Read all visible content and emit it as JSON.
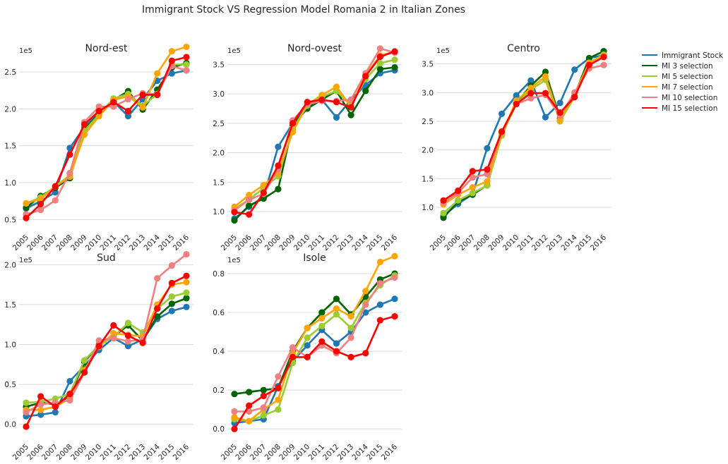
{
  "title": "Immigrant Stock VS Regression Model Romania 2 in Italian Zones",
  "legend": {
    "placement": "right",
    "entries": [
      {
        "name": "Immigrant Stock",
        "color": "#1f77b4"
      },
      {
        "name": "MI 3 selection",
        "color": "#006400"
      },
      {
        "name": "MI 5 selection",
        "color": "#9acd32"
      },
      {
        "name": "MI 7 selection",
        "color": "#ffa500"
      },
      {
        "name": "MI 10 selection",
        "color": "#f08080"
      },
      {
        "name": "MI 15 selection",
        "color": "#ff0000"
      }
    ]
  },
  "chart_data": [
    {
      "type": "line",
      "title": "Nord-est",
      "offset_label": "1e5",
      "grid": true,
      "x": [
        "2005",
        "2006",
        "2007",
        "2008",
        "2009",
        "2010",
        "2011",
        "2012",
        "2013",
        "2014",
        "2015",
        "2016"
      ],
      "ylim": [
        0.37,
        2.92
      ],
      "yticks": [
        0.5,
        1.0,
        1.5,
        2.0,
        2.5
      ],
      "ytick_labels": [
        "0.5",
        "1.0",
        "1.5",
        "2.0",
        "2.5"
      ],
      "series": [
        {
          "name": "Immigrant Stock",
          "values": [
            0.65,
            0.75,
            0.87,
            1.47,
            1.75,
            1.95,
            2.1,
            1.9,
            2.13,
            2.38,
            2.48,
            2.52
          ]
        },
        {
          "name": "MI 3 selection",
          "values": [
            0.66,
            0.82,
            0.93,
            1.06,
            1.72,
            1.93,
            2.12,
            2.24,
            1.99,
            2.26,
            2.56,
            2.62
          ]
        },
        {
          "name": "MI 5 selection",
          "values": [
            0.72,
            0.8,
            0.95,
            1.1,
            1.7,
            1.92,
            2.14,
            2.2,
            2.04,
            2.2,
            2.6,
            2.6
          ]
        },
        {
          "name": "MI 7 selection",
          "values": [
            0.72,
            0.78,
            0.95,
            1.08,
            1.65,
            1.9,
            2.12,
            2.17,
            2.02,
            2.48,
            2.78,
            2.84
          ]
        },
        {
          "name": "MI 10 selection",
          "values": [
            0.57,
            0.63,
            0.76,
            1.13,
            1.82,
            2.03,
            2.03,
            2.13,
            2.21,
            2.2,
            2.58,
            2.52
          ]
        },
        {
          "name": "MI 15 selection",
          "values": [
            0.52,
            0.71,
            0.95,
            1.38,
            1.79,
            1.97,
            2.09,
            1.97,
            2.19,
            2.19,
            2.65,
            2.7
          ]
        }
      ]
    },
    {
      "type": "line",
      "title": "Nord-ovest",
      "offset_label": "1e5",
      "grid": true,
      "x": [
        "2005",
        "2006",
        "2007",
        "2008",
        "2009",
        "2010",
        "2011",
        "2012",
        "2013",
        "2014",
        "2015",
        "2016"
      ],
      "ylim": [
        0.7,
        3.9
      ],
      "yticks": [
        1.0,
        1.5,
        2.0,
        2.5,
        3.0,
        3.5
      ],
      "ytick_labels": [
        "1.0",
        "1.5",
        "2.0",
        "2.5",
        "3.0",
        "3.5"
      ],
      "series": [
        {
          "name": "Immigrant Stock",
          "values": [
            0.88,
            1.08,
            1.25,
            2.1,
            2.5,
            2.78,
            2.9,
            2.6,
            2.9,
            3.15,
            3.35,
            3.4
          ]
        },
        {
          "name": "MI 3 selection",
          "values": [
            0.85,
            1.1,
            1.22,
            1.38,
            2.47,
            2.75,
            2.9,
            3.05,
            2.64,
            3.05,
            3.42,
            3.45
          ]
        },
        {
          "name": "MI 5 selection",
          "values": [
            1.05,
            1.2,
            1.4,
            1.6,
            2.4,
            2.8,
            2.95,
            3.05,
            2.8,
            3.25,
            3.52,
            3.58
          ]
        },
        {
          "name": "MI 7 selection",
          "values": [
            1.08,
            1.28,
            1.45,
            1.65,
            2.35,
            2.82,
            2.98,
            3.12,
            2.78,
            3.32,
            3.65,
            3.72
          ]
        },
        {
          "name": "MI 10 selection",
          "values": [
            1.02,
            1.2,
            1.3,
            1.72,
            2.55,
            2.82,
            2.88,
            2.88,
            2.9,
            3.35,
            3.77,
            3.7
          ]
        },
        {
          "name": "MI 15 selection",
          "values": [
            0.99,
            0.95,
            1.32,
            1.78,
            2.5,
            2.86,
            2.9,
            2.86,
            2.77,
            3.3,
            3.63,
            3.72
          ]
        }
      ]
    },
    {
      "type": "line",
      "title": "Centro",
      "offset_label": "1e5",
      "grid": true,
      "x": [
        "2005",
        "2006",
        "2007",
        "2008",
        "2009",
        "2010",
        "2011",
        "2012",
        "2013",
        "2014",
        "2015",
        "2016"
      ],
      "ylim": [
        0.62,
        3.9
      ],
      "yticks": [
        1.0,
        1.5,
        2.0,
        2.5,
        3.0,
        3.5
      ],
      "ytick_labels": [
        "1.0",
        "1.5",
        "2.0",
        "2.5",
        "3.0",
        "3.5"
      ],
      "series": [
        {
          "name": "Immigrant Stock",
          "values": [
            0.85,
            1.06,
            1.23,
            2.03,
            2.63,
            2.95,
            3.21,
            2.57,
            2.82,
            3.4,
            3.6,
            3.65
          ]
        },
        {
          "name": "MI 3 selection",
          "values": [
            0.82,
            1.1,
            1.22,
            1.39,
            2.28,
            2.82,
            3.12,
            3.36,
            2.55,
            2.95,
            3.6,
            3.72
          ]
        },
        {
          "name": "MI 5 selection",
          "values": [
            0.9,
            1.12,
            1.25,
            1.38,
            2.25,
            2.8,
            3.05,
            3.22,
            2.5,
            2.92,
            3.52,
            3.66
          ]
        },
        {
          "name": "MI 7 selection",
          "values": [
            1.05,
            1.22,
            1.35,
            1.45,
            2.28,
            2.86,
            3.08,
            3.28,
            2.52,
            2.98,
            3.52,
            3.65
          ]
        },
        {
          "name": "MI 10 selection",
          "values": [
            1.08,
            1.25,
            1.52,
            1.58,
            2.3,
            2.8,
            2.9,
            2.96,
            2.6,
            3.0,
            3.42,
            3.48
          ]
        },
        {
          "name": "MI 15 selection",
          "values": [
            1.12,
            1.29,
            1.63,
            1.66,
            2.32,
            2.8,
            2.99,
            2.99,
            2.65,
            2.92,
            3.48,
            3.62
          ]
        }
      ]
    },
    {
      "type": "line",
      "title": "Sud",
      "offset_label": "1e5",
      "grid": true,
      "x": [
        "2005",
        "2006",
        "2007",
        "2008",
        "2009",
        "2010",
        "2011",
        "2012",
        "2013",
        "2014",
        "2015",
        "2016"
      ],
      "ylim": [
        -0.18,
        2.18
      ],
      "yticks": [
        0.0,
        0.5,
        1.0,
        1.5,
        2.0
      ],
      "ytick_labels": [
        "0.0",
        "0.5",
        "1.0",
        "1.5",
        "2.0"
      ],
      "series": [
        {
          "name": "Immigrant Stock",
          "values": [
            0.1,
            0.12,
            0.15,
            0.54,
            0.73,
            0.93,
            1.08,
            0.98,
            1.06,
            1.32,
            1.42,
            1.47
          ]
        },
        {
          "name": "MI 3 selection",
          "values": [
            0.22,
            0.27,
            0.25,
            0.35,
            0.78,
            1.0,
            1.1,
            1.24,
            1.05,
            1.35,
            1.51,
            1.58
          ]
        },
        {
          "name": "MI 5 selection",
          "values": [
            0.27,
            0.28,
            0.32,
            0.38,
            0.8,
            0.99,
            1.1,
            1.27,
            1.15,
            1.45,
            1.6,
            1.65
          ]
        },
        {
          "name": "MI 7 selection",
          "values": [
            0.18,
            0.18,
            0.22,
            0.32,
            0.68,
            0.97,
            1.14,
            1.12,
            1.1,
            1.5,
            1.75,
            1.78
          ]
        },
        {
          "name": "MI 10 selection",
          "values": [
            0.15,
            0.25,
            0.27,
            0.3,
            0.65,
            1.05,
            1.08,
            1.04,
            1.06,
            1.83,
            1.99,
            2.13
          ]
        },
        {
          "name": "MI 15 selection",
          "values": [
            -0.03,
            0.35,
            0.22,
            0.38,
            0.65,
            0.98,
            1.24,
            1.11,
            1.02,
            1.45,
            1.77,
            1.86
          ]
        }
      ]
    },
    {
      "type": "line",
      "title": "Isole",
      "offset_label": "1e5",
      "grid": true,
      "x": [
        "2005",
        "2006",
        "2007",
        "2008",
        "2009",
        "2010",
        "2011",
        "2012",
        "2013",
        "2014",
        "2015",
        "2016"
      ],
      "ylim": [
        -0.05,
        0.92
      ],
      "yticks": [
        0.0,
        0.2,
        0.4,
        0.6,
        0.8
      ],
      "ytick_labels": [
        "0.0",
        "0.2",
        "0.4",
        "0.6",
        "0.8"
      ],
      "series": [
        {
          "name": "Immigrant Stock",
          "values": [
            0.03,
            0.04,
            0.05,
            0.22,
            0.35,
            0.43,
            0.51,
            0.44,
            0.5,
            0.6,
            0.64,
            0.67
          ]
        },
        {
          "name": "MI 3 selection",
          "values": [
            0.18,
            0.19,
            0.2,
            0.21,
            0.4,
            0.52,
            0.6,
            0.67,
            0.59,
            0.68,
            0.77,
            0.8
          ]
        },
        {
          "name": "MI 5 selection",
          "values": [
            0.05,
            0.04,
            0.07,
            0.1,
            0.34,
            0.47,
            0.53,
            0.59,
            0.52,
            0.65,
            0.74,
            0.79
          ]
        },
        {
          "name": "MI 7 selection",
          "values": [
            0.06,
            0.04,
            0.1,
            0.15,
            0.39,
            0.52,
            0.57,
            0.62,
            0.58,
            0.71,
            0.86,
            0.89
          ]
        },
        {
          "name": "MI 10 selection",
          "values": [
            0.09,
            0.09,
            0.11,
            0.27,
            0.42,
            0.37,
            0.43,
            0.39,
            0.47,
            0.64,
            0.75,
            0.78
          ]
        },
        {
          "name": "MI 15 selection",
          "values": [
            0.0,
            0.12,
            0.17,
            0.21,
            0.37,
            0.37,
            0.45,
            0.4,
            0.37,
            0.39,
            0.56,
            0.58
          ]
        }
      ]
    }
  ]
}
